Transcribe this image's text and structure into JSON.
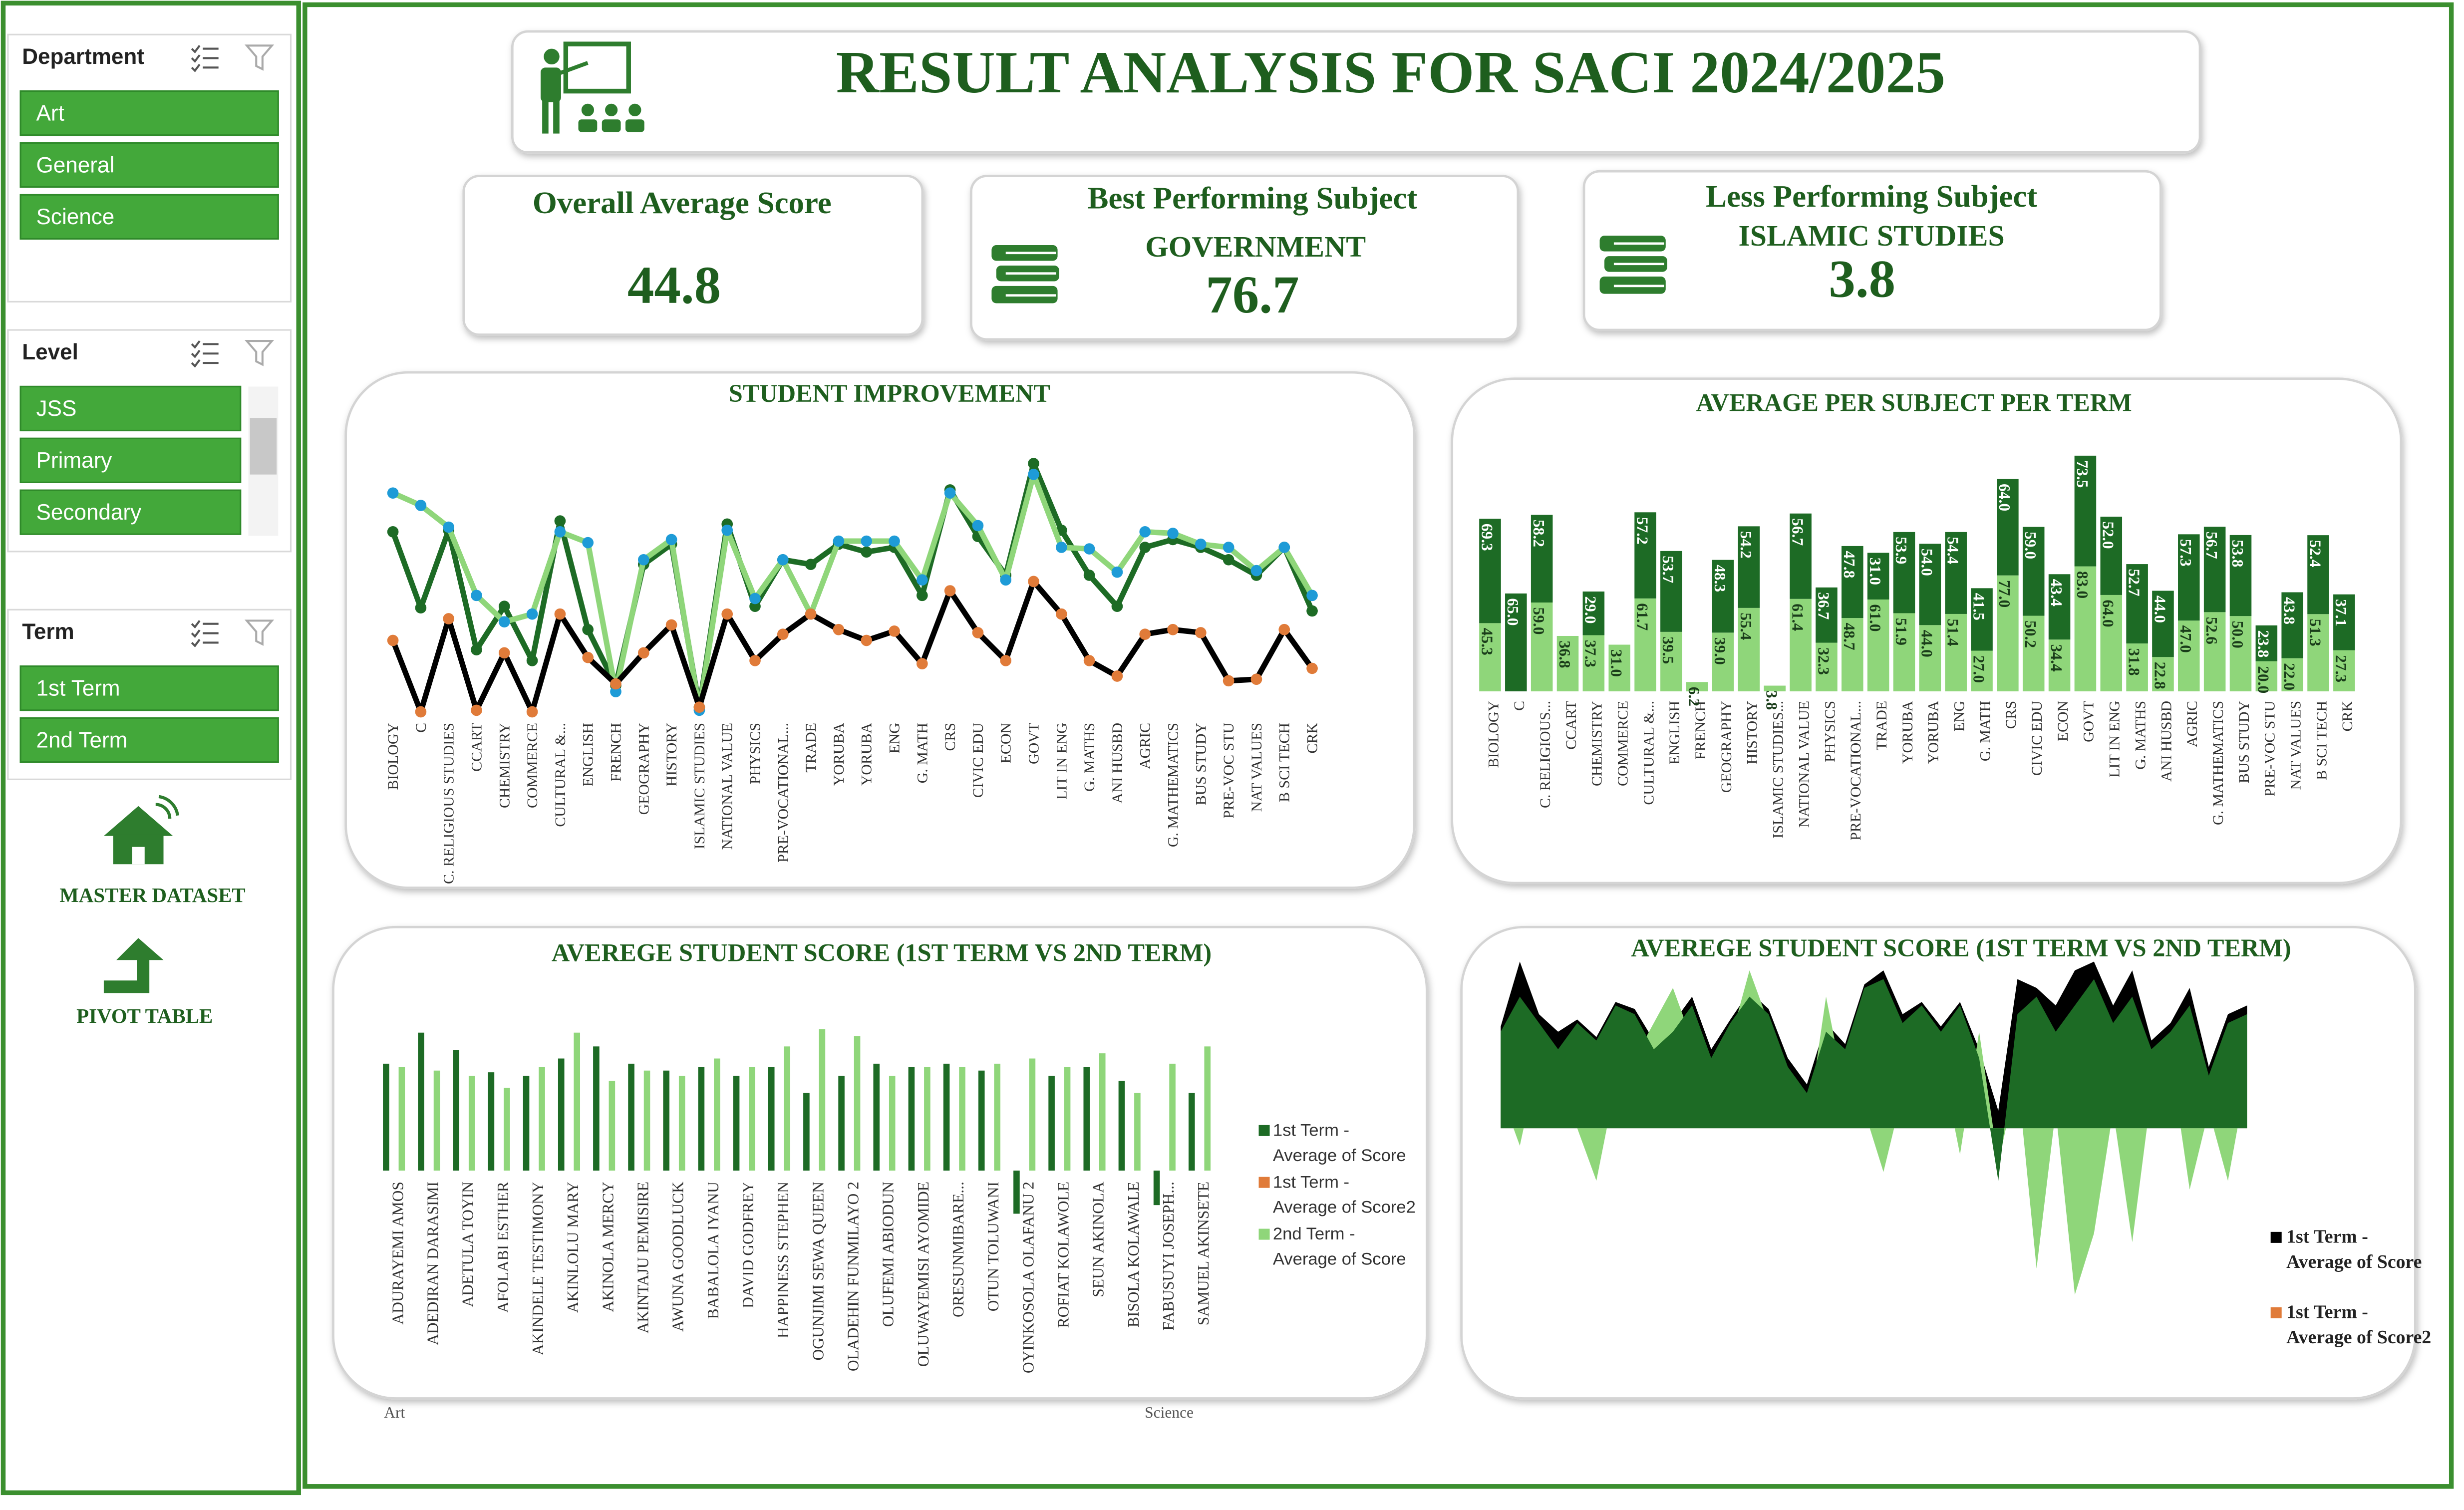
{
  "slicers": [
    {
      "title": "Department",
      "items": [
        "Art",
        "General",
        "Science"
      ]
    },
    {
      "title": "Level",
      "items": [
        "JSS",
        "Primary",
        "Secondary"
      ]
    },
    {
      "title": "Term",
      "items": [
        "1st Term",
        "2nd Term"
      ]
    }
  ],
  "nav": [
    "MASTER DATASET",
    "PIVOT TABLE"
  ],
  "header": {
    "title": "RESULT ANALYSIS FOR SACI 2024/2025"
  },
  "kpis": [
    {
      "title": "Overall Average Score",
      "value": 44.8
    },
    {
      "title": "Best Performing Subject",
      "subject": "GOVERNMENT",
      "value": 76.7
    },
    {
      "title": "Less Performing Subject",
      "subject": "ISLAMIC STUDIES",
      "value": 3.8
    }
  ],
  "chart_data": [
    {
      "type": "line",
      "title": "STUDENT IMPROVEMENT",
      "categories": [
        "BIOLOGY",
        "C",
        "C. RELIGIOUS STUDIES",
        "CCART",
        "CHEMISTRY",
        "COMMERCE",
        "CULTURAL &...",
        "ENGLISH",
        "FRENCH",
        "GEOGRAPHY",
        "HISTORY",
        "ISLAMIC STUDIES",
        "NATIONAL VALUE",
        "PHYSICS",
        "PRE-VOCATIONAL...",
        "TRADE",
        "YORUBA",
        "YORUBA",
        "ENG",
        "G. MATH",
        "CRS",
        "CIVIC EDU",
        "ECON",
        "GOVT",
        "LIT IN ENG",
        "G. MATHS",
        "ANI HUSBD",
        "AGRIC",
        "G. MATHEMATICS",
        "BUS STUDY",
        "PRE-VOC STU",
        "NAT VALUES",
        "B SCI TECH",
        "CRK"
      ],
      "series": [
        {
          "color": "#1d6b25",
          "marker_color": "#1d6b25",
          "values": [
            59,
            34.5,
            59.5,
            21,
            35,
            17.5,
            62.5,
            27.5,
            9.5,
            48.5,
            55,
            2.5,
            61.5,
            35,
            50,
            48.5,
            55,
            52.5,
            54,
            38.5,
            72.5,
            57.5,
            45,
            81,
            59.5,
            45,
            35,
            54,
            56.5,
            54,
            50,
            45,
            54,
            33.5
          ]
        },
        {
          "color": "#8fd67a",
          "marker_color": "#1e9bd7",
          "values": [
            71.5,
            67.5,
            60.5,
            38.5,
            30,
            32.5,
            59,
            55.5,
            7.5,
            50,
            56.5,
            1.5,
            59.5,
            37.5,
            50,
            32.5,
            56,
            56,
            56,
            43.5,
            71.5,
            61,
            43.5,
            77.5,
            54,
            53.5,
            46,
            59,
            58.5,
            55,
            54,
            46.5,
            54,
            38.5
          ]
        },
        {
          "color": "#000000",
          "marker_color": "#e07b39",
          "values": [
            24,
            1,
            31,
            1.5,
            20,
            1,
            32.5,
            18.5,
            10,
            20,
            29,
            2.5,
            32.5,
            17.5,
            26,
            32.5,
            27.5,
            24,
            27,
            16.5,
            40,
            26.5,
            17.5,
            43,
            32.5,
            17.5,
            12.5,
            26,
            27.5,
            26.5,
            11,
            11.5,
            27.5,
            15
          ]
        }
      ]
    },
    {
      "type": "bar",
      "stacked": true,
      "title": "AVERAGE PER SUBJECT PER TERM",
      "categories": [
        "BIOLOGY",
        "C",
        "C. RELIGIOUS...",
        "CCART",
        "CHEMISTRY",
        "COMMERCE",
        "CULTURAL &...",
        "ENGLISH",
        "FRENCH",
        "GEOGRAPHY",
        "HISTORY",
        "ISLAMIC STUDIES...",
        "NATIONAL VALUE",
        "PHYSICS",
        "PRE-VOCATIONAL...",
        "TRADE",
        "YORUBA",
        "YORUBA",
        "ENG",
        "G. MATH",
        "CRS",
        "CIVIC EDU",
        "ECON",
        "GOVT",
        "LIT IN ENG",
        "G. MATHS",
        "ANI HUSBD",
        "AGRIC",
        "G. MATHEMATICS",
        "BUS STUDY",
        "PRE-VOC STU",
        "NAT VALUES",
        "B SCI TECH",
        "CRK"
      ],
      "series": [
        {
          "color": "#8fd67a",
          "label_color": "#1a3d1a",
          "values": [
            45.3,
            null,
            59.0,
            36.8,
            37.3,
            31.0,
            61.7,
            39.5,
            6.2,
            39.0,
            55.4,
            3.8,
            61.4,
            32.3,
            48.7,
            61.0,
            51.9,
            44.0,
            51.4,
            27.0,
            77.0,
            50.2,
            34.4,
            83.0,
            64.0,
            31.8,
            22.8,
            47.0,
            52.6,
            50.0,
            20.0,
            22.0,
            51.3,
            27.3
          ],
          "value_labels": [
            "45.3",
            null,
            "59.0",
            "36.8",
            "37.3",
            "31.0",
            "61.7",
            "39.5",
            "6.2",
            "39.0",
            "55.4",
            "3.8",
            "61.4",
            "32.3",
            "48.7",
            "61.0",
            "51.9",
            "44.0",
            "51.4",
            "27.0",
            "77.0",
            "50.2",
            "34.4",
            "83.0",
            "64.0",
            "31.8",
            "22.8",
            "47.0",
            "52.6",
            "50.0",
            "20.0",
            "22.0",
            "51.3",
            "27.3"
          ]
        },
        {
          "color": "#1d6b25",
          "label_color": "#ffffff",
          "values": [
            69.3,
            65.0,
            58.2,
            null,
            29.0,
            null,
            57.2,
            53.7,
            null,
            48.3,
            54.2,
            null,
            56.7,
            36.7,
            47.8,
            31.0,
            53.9,
            54.0,
            54.4,
            41.5,
            64.0,
            59.0,
            43.4,
            73.5,
            52.0,
            52.7,
            44.0,
            57.3,
            56.7,
            53.8,
            23.8,
            43.8,
            52.4,
            37.1
          ],
          "value_labels": [
            "69.3",
            "65.0",
            "58.2",
            null,
            "29.0",
            null,
            "57.2",
            "53.7",
            null,
            "48.3",
            "54.2",
            null,
            "56.7",
            "36.7",
            "47.8",
            "31.0",
            "53.9",
            "54.0",
            "54.4",
            "41.5",
            "64.0",
            "59.0",
            "43.4",
            "73.5",
            "52.0",
            "52.7",
            "44.0",
            "57.3",
            "56.7",
            "53.8",
            "23.8",
            "43.8",
            "52.4",
            "37.1"
          ]
        }
      ]
    },
    {
      "type": "bar",
      "title": "AVEREGE STUDENT SCORE (1ST TERM VS 2ND TERM)",
      "categories": [
        "ADURAYEMI AMOS",
        "ADEDIRAN DARASIMI",
        "ADETULA TOYIN",
        "AFOLABI ESTHER",
        "AKINDELE TESTIMONY",
        "AKINLOLU MARY",
        "AKINOLA MERCY",
        "AKINTAJU PEMISIRE",
        "AWUNA GOODLUCK",
        "BABALOLA IYANU",
        "DAVID GODFREY",
        "HAPPINESS STEPHEN",
        "OGUNJIMI SEWA QUEEN",
        "OLADEHIN FUNMILAYO 2",
        "OLUFEMI ABIODUN",
        "OLUWAYEMISI AYOMIDE",
        "ORESUNMIBARE...",
        "OTUN TOLUWANI",
        "OYINKOSOLA OLAFANU 2",
        "ROFIAT KOLAWOLE",
        "SEUN AKINOLA",
        "BISOLA KOLAWALE",
        "FABUSUYI JOSEPH...",
        "SAMUEL AKINSETE"
      ],
      "group_labels": [
        "Art",
        "Science"
      ],
      "series": [
        {
          "name": "1st Term - Average of Score",
          "color": "#1d6b25",
          "values": [
            62,
            80,
            70,
            57,
            55,
            65,
            72,
            62,
            58,
            60,
            55,
            60,
            45,
            55,
            62,
            60,
            62,
            58,
            -25,
            55,
            60,
            52,
            -20,
            45
          ]
        },
        {
          "name": "1st Term - Average of Score2",
          "color": "#e07b39",
          "values": [
            null,
            null,
            null,
            null,
            null,
            null,
            null,
            null,
            null,
            null,
            null,
            null,
            null,
            null,
            null,
            null,
            null,
            null,
            null,
            null,
            null,
            null,
            null,
            null
          ]
        },
        {
          "name": "2nd Term - Average of Score",
          "color": "#8fd67a",
          "values": [
            60,
            58,
            55,
            48,
            60,
            80,
            52,
            58,
            55,
            65,
            60,
            72,
            82,
            78,
            55,
            60,
            60,
            62,
            65,
            60,
            68,
            45,
            62,
            72
          ]
        }
      ]
    },
    {
      "type": "area",
      "title": "AVEREGE STUDENT SCORE (1ST TERM VS 2ND TERM)",
      "series": [
        {
          "name": "1st Term - Average of Score",
          "color": "#000000",
          "values": [
            58,
            95,
            65,
            55,
            62,
            52,
            72,
            68,
            50,
            60,
            75,
            45,
            62,
            78,
            68,
            40,
            25,
            60,
            48,
            82,
            90,
            65,
            72,
            58,
            72,
            45,
            10,
            85,
            80,
            70,
            90,
            95,
            70,
            90,
            50,
            60,
            80,
            35,
            65,
            70
          ]
        },
        {
          "name": "1st Term - Average of Score2",
          "color": "#e07b39",
          "values": [
            null,
            null,
            null,
            null,
            null,
            null,
            null,
            null,
            null,
            null,
            null,
            null,
            null,
            null,
            null,
            null,
            null,
            null,
            null,
            null,
            null,
            null,
            null,
            null,
            null,
            null,
            null,
            null,
            null,
            null,
            null,
            null,
            null,
            null,
            null,
            null,
            null,
            null,
            null,
            null
          ]
        },
        {
          "color": "#8fd67a",
          "values": [
            20,
            -10,
            40,
            10,
            0,
            -30,
            25,
            40,
            60,
            80,
            50,
            20,
            50,
            90,
            60,
            30,
            0,
            75,
            20,
            10,
            -25,
            20,
            55,
            40,
            -15,
            55,
            -20,
            30,
            -80,
            10,
            -95,
            -60,
            10,
            -65,
            20,
            40,
            -35,
            10,
            -30,
            30
          ]
        },
        {
          "color": "#1d6b25",
          "values": [
            55,
            75,
            60,
            45,
            60,
            50,
            70,
            65,
            45,
            55,
            70,
            40,
            60,
            75,
            65,
            35,
            20,
            55,
            45,
            80,
            85,
            60,
            70,
            55,
            70,
            40,
            -30,
            65,
            75,
            55,
            70,
            85,
            60,
            75,
            45,
            55,
            70,
            30,
            60,
            65
          ]
        }
      ]
    }
  ]
}
